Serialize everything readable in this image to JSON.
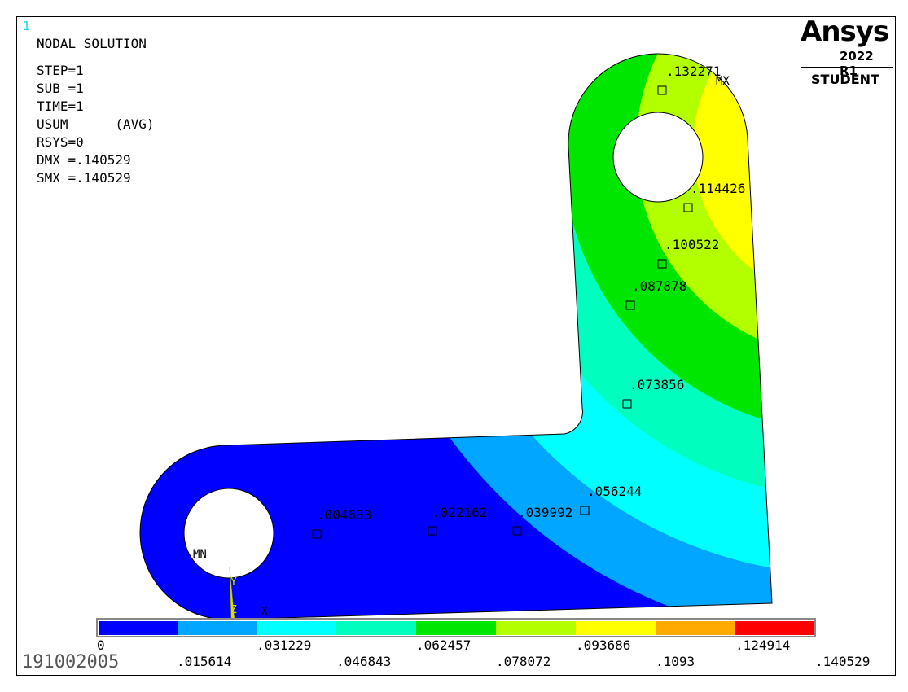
{
  "window_number": "1",
  "info": {
    "title": "NODAL SOLUTION",
    "lines": [
      "STEP=1",
      "SUB =1",
      "TIME=1",
      "USUM      (AVG)",
      "RSYS=0",
      "DMX =.140529",
      "SMX =.140529"
    ]
  },
  "logo": {
    "name": "Ansys",
    "version": "2022 R1",
    "edition": "STUDENT"
  },
  "probe_labels": [
    ".132271",
    ".114426",
    ".100522",
    ".087878",
    ".073856",
    ".056244",
    ".039992",
    ".022162",
    ".004633"
  ],
  "markers": {
    "max": "MX",
    "min": "MN"
  },
  "axis_labels": {
    "y": "Y",
    "z": "Z",
    "x": "X"
  },
  "legend": {
    "colors": [
      "#0000ff",
      "#00a6ff",
      "#00ffff",
      "#00ffbf",
      "#00e600",
      "#b3ff00",
      "#ffff00",
      "#ffaa00",
      "#ff0000"
    ],
    "top_labels": [
      "0",
      ".031229",
      ".062457",
      ".093686",
      ".124914"
    ],
    "bottom_labels": [
      ".015614",
      ".046843",
      ".078072",
      ".1093",
      ".140529"
    ]
  },
  "bottom_id": "191002005"
}
